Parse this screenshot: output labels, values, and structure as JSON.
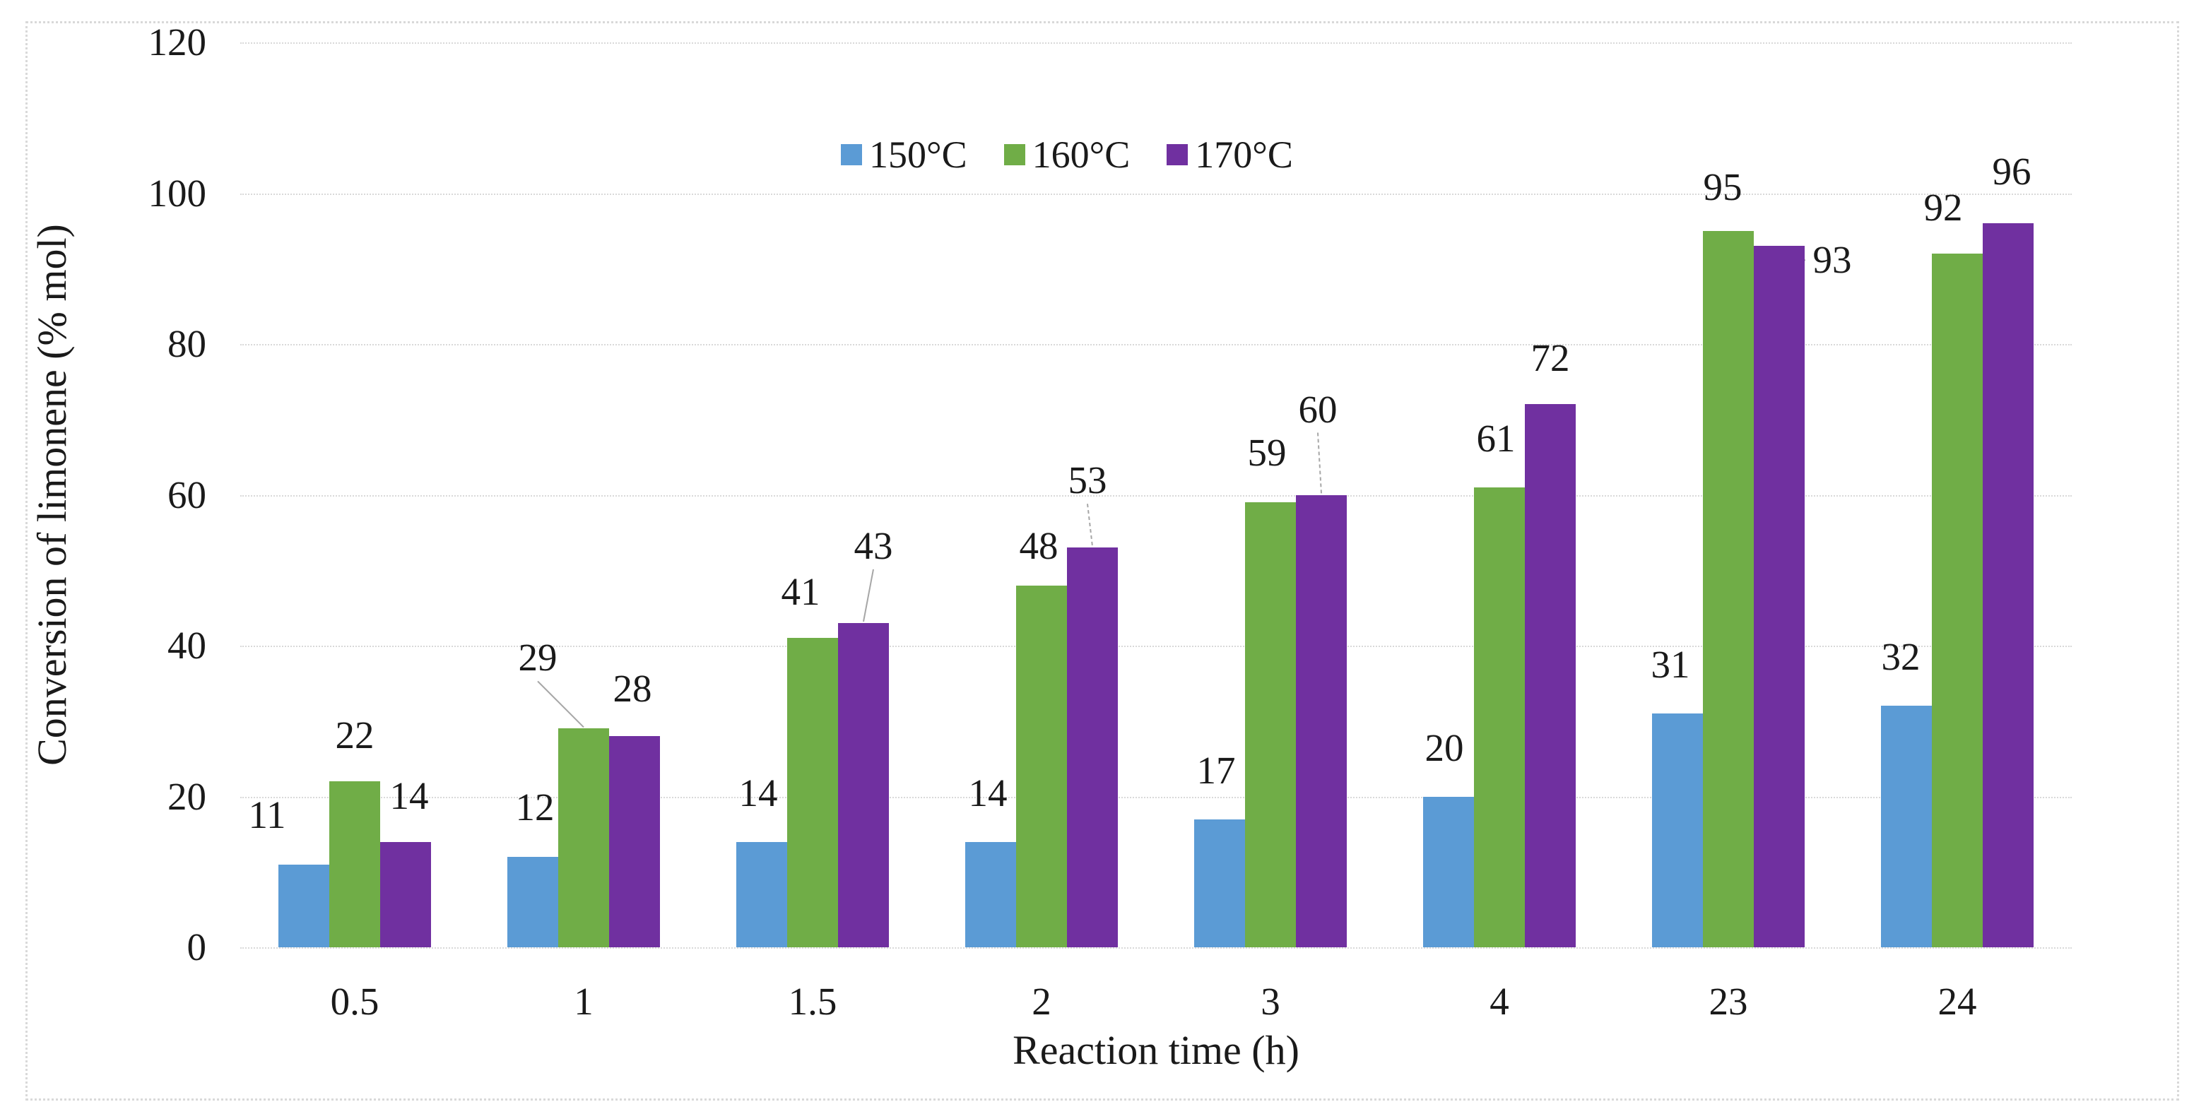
{
  "chart_data": {
    "type": "bar",
    "title": "",
    "xlabel": "Reaction time (h)",
    "ylabel": "Conversion of limonene (% mol)",
    "ylim": [
      0,
      120
    ],
    "ytick_step": 20,
    "yticks": [
      "0",
      "20",
      "40",
      "60",
      "80",
      "100",
      "120"
    ],
    "categories": [
      "0.5",
      "1",
      "1.5",
      "2",
      "3",
      "4",
      "23",
      "24"
    ],
    "series": [
      {
        "name": "150°C",
        "color": "#5B9BD5",
        "values": [
          11,
          12,
          14,
          14,
          17,
          20,
          31,
          32
        ]
      },
      {
        "name": "160°C",
        "color": "#70AD47",
        "values": [
          22,
          29,
          41,
          48,
          59,
          61,
          95,
          92
        ]
      },
      {
        "name": "170°C",
        "color": "#7030A0",
        "values": [
          14,
          28,
          43,
          53,
          60,
          72,
          93,
          96
        ]
      }
    ],
    "legend_position": "top-center",
    "grid": "horizontal-dotted",
    "data_labels": "outside-end",
    "label_layout": [
      [
        {
          "dx": -52,
          "rise": 43
        },
        {
          "dx": 3,
          "rise": 43
        },
        {
          "dx": -5,
          "rise": 42
        },
        {
          "dx": -4,
          "rise": 42
        },
        {
          "dx": -5,
          "rise": 42
        },
        {
          "dx": -6,
          "rise": 42
        },
        {
          "dx": -10,
          "rise": 42
        },
        {
          "dx": -8,
          "rise": 42
        }
      ],
      [
        {
          "dx": 0,
          "rise": 38
        },
        {
          "dx": -65,
          "rise": 73,
          "leader": true
        },
        {
          "dx": -17,
          "rise": 38
        },
        {
          "dx": -4,
          "rise": 29
        },
        {
          "dx": -5,
          "rise": 43
        },
        {
          "dx": -5,
          "rise": 42
        },
        {
          "dx": -8,
          "rise": 35
        },
        {
          "dx": -20,
          "rise": 38
        }
      ],
      [
        {
          "dx": 5,
          "rise": 38
        },
        {
          "dx": -3,
          "rise": 40
        },
        {
          "dx": 14,
          "rise": 82,
          "leader": true
        },
        {
          "dx": -7,
          "rise": 68,
          "leader": true,
          "dash": true
        },
        {
          "dx": -5,
          "rise": 94,
          "leader": true,
          "dash": true
        },
        {
          "dx": 0,
          "rise": 38
        },
        {
          "dx": 75,
          "rise": -47,
          "leader": "elbow"
        },
        {
          "dx": 5,
          "rise": 46
        }
      ]
    ]
  },
  "colors": {
    "gridline": "#d9d9d9",
    "frame_border": "#d9d9d9",
    "leader_line": "#a6a6a6",
    "text": "#1a1a1a",
    "background": "#ffffff"
  }
}
